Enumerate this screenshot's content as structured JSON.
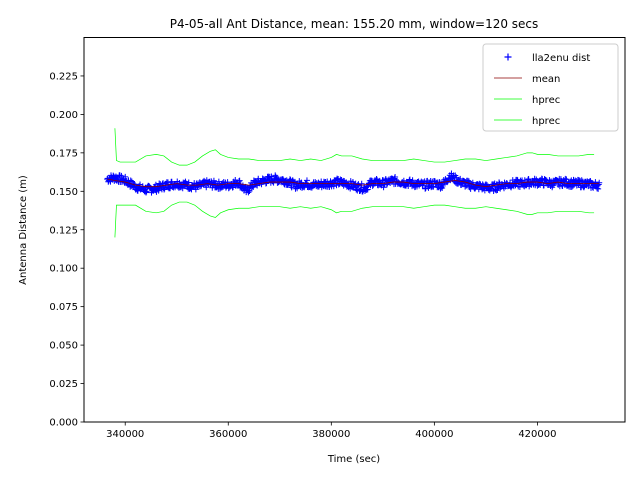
{
  "chart_data": {
    "type": "line",
    "title": "P4-05-all Ant Distance, mean: 155.20 mm, window=120 secs",
    "xlabel": "Time (sec)",
    "ylabel": "Antenna Distance (m)",
    "xlim": [
      332000,
      437000
    ],
    "ylim": [
      0,
      0.25
    ],
    "xticks": [
      340000,
      360000,
      380000,
      400000,
      420000
    ],
    "xtick_labels": [
      "340000",
      "360000",
      "380000",
      "400000",
      "420000"
    ],
    "yticks": [
      0.0,
      0.025,
      0.05,
      0.075,
      0.1,
      0.125,
      0.15,
      0.175,
      0.2,
      0.225
    ],
    "ytick_labels": [
      "0.000",
      "0.025",
      "0.050",
      "0.075",
      "0.100",
      "0.125",
      "0.150",
      "0.175",
      "0.200",
      "0.225"
    ],
    "grid": false,
    "legend_position": "top-right",
    "series": [
      {
        "name": "lla2enu dist",
        "style": "marker",
        "marker": "+",
        "color": "#0000ff",
        "x": [
          336500,
          338000,
          340000,
          342000,
          344000,
          346000,
          348000,
          350000,
          352000,
          354000,
          356000,
          358000,
          360000,
          362000,
          363500,
          365000,
          367000,
          369000,
          371000,
          373000,
          375000,
          377000,
          379000,
          381000,
          383000,
          385000,
          386500,
          388000,
          390000,
          392000,
          394000,
          396000,
          398000,
          400000,
          401500,
          403000,
          405000,
          407000,
          409000,
          411000,
          413000,
          415000,
          417000,
          419000,
          421000,
          423000,
          425000,
          427000,
          429000,
          431000,
          432000
        ],
        "y": [
          0.158,
          0.159,
          0.157,
          0.153,
          0.151,
          0.152,
          0.154,
          0.155,
          0.154,
          0.153,
          0.155,
          0.154,
          0.154,
          0.156,
          0.15,
          0.155,
          0.157,
          0.158,
          0.157,
          0.154,
          0.155,
          0.154,
          0.155,
          0.156,
          0.155,
          0.153,
          0.152,
          0.156,
          0.155,
          0.157,
          0.156,
          0.155,
          0.154,
          0.155,
          0.154,
          0.16,
          0.156,
          0.154,
          0.153,
          0.152,
          0.154,
          0.155,
          0.155,
          0.156,
          0.156,
          0.155,
          0.156,
          0.155,
          0.155,
          0.154,
          0.154
        ]
      },
      {
        "name": "mean",
        "style": "line",
        "color": "#8b0000",
        "x": [
          336500,
          338000,
          340000,
          342000,
          344000,
          346000,
          348000,
          350000,
          352000,
          354000,
          356000,
          358000,
          360000,
          362000,
          364000,
          366000,
          368000,
          370000,
          372000,
          374000,
          376000,
          378000,
          380000,
          382000,
          384000,
          386000,
          388000,
          390000,
          392000,
          394000,
          396000,
          398000,
          400000,
          402000,
          404000,
          406000,
          408000,
          410000,
          412000,
          414000,
          416000,
          418000,
          420000,
          422000,
          424000,
          426000,
          428000,
          430000,
          432000
        ],
        "y": [
          0.158,
          0.157,
          0.156,
          0.154,
          0.153,
          0.153,
          0.154,
          0.155,
          0.154,
          0.154,
          0.155,
          0.154,
          0.155,
          0.155,
          0.154,
          0.155,
          0.156,
          0.156,
          0.156,
          0.155,
          0.155,
          0.155,
          0.155,
          0.155,
          0.155,
          0.154,
          0.155,
          0.155,
          0.156,
          0.156,
          0.155,
          0.155,
          0.155,
          0.156,
          0.157,
          0.156,
          0.154,
          0.153,
          0.154,
          0.155,
          0.155,
          0.156,
          0.156,
          0.155,
          0.156,
          0.155,
          0.155,
          0.155,
          0.155
        ]
      },
      {
        "name": "hprec",
        "style": "line",
        "color": "#00ff00",
        "x": [
          338000,
          338300,
          339000,
          340000,
          342000,
          344000,
          346000,
          347500,
          349000,
          350500,
          352000,
          353500,
          355000,
          356500,
          357500,
          358500,
          360000,
          362000,
          364000,
          366000,
          368000,
          370000,
          372000,
          374000,
          376000,
          378000,
          380000,
          381000,
          382000,
          384000,
          386000,
          388000,
          390000,
          392000,
          394000,
          396000,
          398000,
          400000,
          402000,
          404000,
          406000,
          408000,
          410000,
          412000,
          414000,
          416000,
          418000,
          419000,
          420000,
          422000,
          424000,
          426000,
          428000,
          430000,
          431000
        ],
        "y": [
          0.191,
          0.17,
          0.169,
          0.169,
          0.169,
          0.173,
          0.174,
          0.173,
          0.169,
          0.167,
          0.167,
          0.169,
          0.173,
          0.176,
          0.177,
          0.174,
          0.172,
          0.171,
          0.171,
          0.17,
          0.17,
          0.17,
          0.171,
          0.17,
          0.171,
          0.17,
          0.172,
          0.174,
          0.173,
          0.173,
          0.171,
          0.17,
          0.17,
          0.17,
          0.17,
          0.171,
          0.17,
          0.169,
          0.169,
          0.17,
          0.171,
          0.171,
          0.17,
          0.171,
          0.172,
          0.173,
          0.175,
          0.175,
          0.174,
          0.174,
          0.173,
          0.173,
          0.173,
          0.174,
          0.174
        ]
      },
      {
        "name": "hprec",
        "style": "line",
        "color": "#00ff00",
        "x": [
          338000,
          338300,
          339000,
          340000,
          342000,
          344000,
          346000,
          347500,
          349000,
          350500,
          352000,
          353500,
          355000,
          356500,
          357500,
          358500,
          360000,
          362000,
          364000,
          366000,
          368000,
          370000,
          372000,
          374000,
          376000,
          378000,
          380000,
          381000,
          382000,
          384000,
          386000,
          388000,
          390000,
          392000,
          394000,
          396000,
          398000,
          400000,
          402000,
          404000,
          406000,
          408000,
          410000,
          412000,
          414000,
          416000,
          418000,
          419000,
          420000,
          422000,
          424000,
          426000,
          428000,
          430000,
          431000
        ],
        "y": [
          0.12,
          0.141,
          0.141,
          0.141,
          0.141,
          0.137,
          0.136,
          0.137,
          0.141,
          0.143,
          0.143,
          0.141,
          0.137,
          0.134,
          0.133,
          0.136,
          0.138,
          0.139,
          0.139,
          0.14,
          0.14,
          0.14,
          0.139,
          0.14,
          0.139,
          0.14,
          0.138,
          0.136,
          0.137,
          0.137,
          0.139,
          0.14,
          0.14,
          0.14,
          0.14,
          0.139,
          0.14,
          0.141,
          0.141,
          0.14,
          0.139,
          0.139,
          0.14,
          0.139,
          0.138,
          0.137,
          0.135,
          0.135,
          0.136,
          0.136,
          0.137,
          0.137,
          0.137,
          0.136,
          0.136
        ]
      }
    ]
  }
}
